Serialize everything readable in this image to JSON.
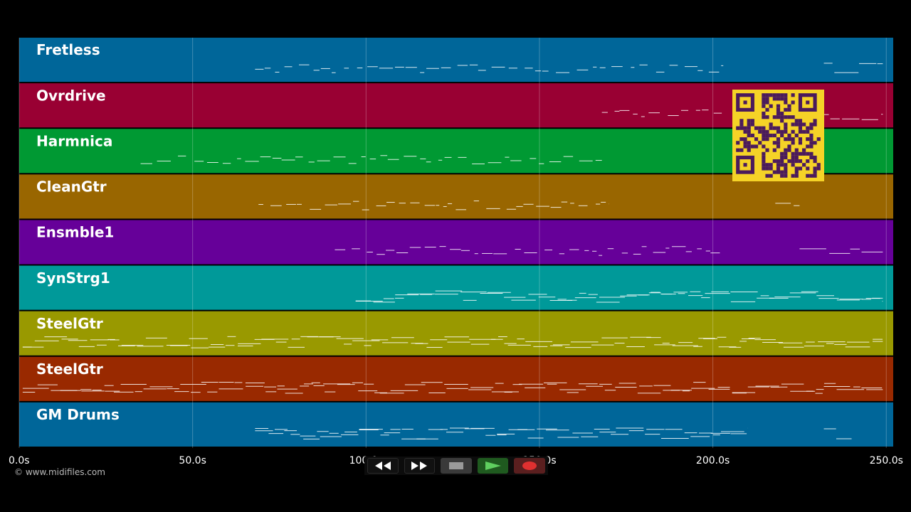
{
  "tracks": [
    {
      "name": "Fretless",
      "color": "#006699",
      "start": 68,
      "end": 203,
      "tail": [
        232,
        249
      ]
    },
    {
      "name": "Ovrdrive",
      "color": "#990033",
      "start": 168,
      "end": 203,
      "tail": [
        226,
        249
      ]
    },
    {
      "name": "Harmnica",
      "color": "#009933",
      "start": 35,
      "end": 168,
      "tail": null
    },
    {
      "name": "CleanGtr",
      "color": "#996600",
      "start": 69,
      "end": 170,
      "tail": [
        218,
        225
      ]
    },
    {
      "name": "Ensmble1",
      "color": "#660099",
      "start": 91,
      "end": 203,
      "tail": [
        225,
        249
      ]
    },
    {
      "name": "SynStrg1",
      "color": "#009999",
      "start": 97,
      "end": 249,
      "tail": null
    },
    {
      "name": "SteelGtr",
      "color": "#999900",
      "start": 1,
      "end": 249,
      "tail": null
    },
    {
      "name": "SteelGtr",
      "color": "#992900",
      "start": 1,
      "end": 249,
      "tail": null
    },
    {
      "name": "GM Drums",
      "color": "#006699",
      "start": 68,
      "end": 210,
      "tail": [
        232,
        240
      ]
    }
  ],
  "timeline": {
    "max_seconds": 252,
    "ticks": [
      "0.0s",
      "50.0s",
      "100.0s",
      "150.0s",
      "200.0s",
      "250.0s"
    ],
    "tick_values": [
      0,
      50,
      100,
      150,
      200,
      250
    ]
  },
  "credit": "© www.midifiles.com",
  "transport": {
    "buttons": [
      {
        "name": "rewind-button",
        "icon": "rewind-icon"
      },
      {
        "name": "fast-forward-button",
        "icon": "fast-forward-icon"
      },
      {
        "name": "stop-button",
        "icon": "stop-icon"
      },
      {
        "name": "play-button",
        "icon": "play-icon"
      },
      {
        "name": "record-button",
        "icon": "record-icon"
      }
    ]
  },
  "qr": {
    "color_bg": "#f5d327",
    "color_fg": "#4a1a5c"
  }
}
